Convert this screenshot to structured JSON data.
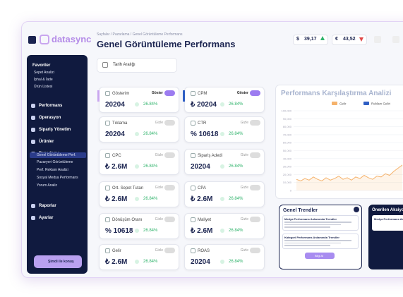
{
  "logo": "datasync",
  "breadcrumb": "Sayfalar / Pazarlama / Genel Görüntüleme Performans",
  "title": "Genel Görüntüleme Performans",
  "currency": [
    {
      "symbol": "$",
      "value": "39,17",
      "trend": "up"
    },
    {
      "symbol": "€",
      "value": "43,52",
      "trend": "down"
    }
  ],
  "date_filter": "Tarih Aralığı",
  "sidebar": {
    "favorites_title": "Favoriler",
    "favorites": [
      "Sepet Analizi",
      "İphal & İade",
      "Ürün Listesi"
    ],
    "menu": [
      "Performans",
      "Operasyon",
      "Sipariş Yönetim",
      "Ürünler",
      "Pazarlama"
    ],
    "submenu": [
      "Genel Görüntüleme Perf.",
      "Pazaryeri Görüntüleme",
      "Perf. Reklam Analizi",
      "Sosyal Medya Performans",
      "Yorum Analiz"
    ],
    "menu_bottom": [
      "Raporlar",
      "Ayarlar"
    ],
    "button": "Şimdi ile konuş"
  },
  "cards": [
    {
      "label": "Gösterim",
      "value": "20204",
      "change": "26.84%",
      "toggle": "Göster",
      "on": true
    },
    {
      "label": "CPM",
      "value": "₺ 20204",
      "change": "26.84%",
      "toggle": "Göster",
      "on": true
    },
    {
      "label": "Tıklama",
      "value": "20204",
      "change": "26.84%",
      "toggle": "Gizle",
      "on": false
    },
    {
      "label": "CTR",
      "value": "% 10618",
      "change": "26.84%",
      "toggle": "Gizle",
      "on": false
    },
    {
      "label": "CPC",
      "value": "₺ 2.6M",
      "change": "26.84%",
      "toggle": "Gizle",
      "on": false
    },
    {
      "label": "Sipariş Adedi",
      "value": "20204",
      "change": "26.84%",
      "toggle": "Gizle",
      "on": false
    },
    {
      "label": "Ort. Sepet Tutarı",
      "value": "₺ 2.6M",
      "change": "26.84%",
      "toggle": "Gizle",
      "on": false
    },
    {
      "label": "CPA",
      "value": "₺ 2.6M",
      "change": "26.84%",
      "toggle": "Gizle",
      "on": false
    },
    {
      "label": "Dönüşüm Oranı",
      "value": "% 10618",
      "change": "26.84%",
      "toggle": "Gizle",
      "on": false
    },
    {
      "label": "Maliyet",
      "value": "₺ 2.6M",
      "change": "26.84%",
      "toggle": "Gizle",
      "on": false
    },
    {
      "label": "Gelir",
      "value": "₺ 2.6M",
      "change": "26.84%",
      "toggle": "Gizle",
      "on": false
    },
    {
      "label": "ROAS",
      "value": "20204",
      "change": "26.84%",
      "toggle": "Gizle",
      "on": false
    }
  ],
  "chart": {
    "title": "Performans Karşılaştırma Analizi",
    "ylim": [
      0,
      100000
    ],
    "yticks": [
      {
        "value": 100000,
        "label": "100,000"
      },
      {
        "value": 90000,
        "label": "90,000"
      },
      {
        "value": 80000,
        "label": "80,000"
      },
      {
        "value": 70000,
        "label": "70,000"
      },
      {
        "value": 60000,
        "label": "60,000"
      },
      {
        "value": 50000,
        "label": "50,000"
      },
      {
        "value": 40000,
        "label": "40,000"
      },
      {
        "value": 30000,
        "label": "30,000"
      },
      {
        "value": 20000,
        "label": "20,000"
      },
      {
        "value": 10000,
        "label": "10,000"
      },
      0
    ],
    "series": [
      {
        "name": "Gelir",
        "color": "#f5b26b",
        "values": [
          14000,
          12000,
          15000,
          13000,
          17000,
          14000,
          12000,
          16000,
          13000,
          15000,
          18000,
          14000,
          16000,
          13000,
          17000,
          15000,
          19000,
          16000,
          14000,
          18000,
          17000,
          21000,
          19000,
          24000,
          28000,
          32000
        ]
      },
      {
        "name": "Reklam Geliri",
        "color": "#2f5fc4"
      }
    ]
  },
  "trends": {
    "title": "Genel Trendler",
    "items": [
      "Medya Performans Anlamında Trendler",
      "Kategori Performans Anlamında Trendler"
    ],
    "button": "Bilgi Al"
  },
  "actions": {
    "title": "Önerilen Aksiyonlar",
    "items": [
      "Medya Performans Anlamında"
    ]
  }
}
